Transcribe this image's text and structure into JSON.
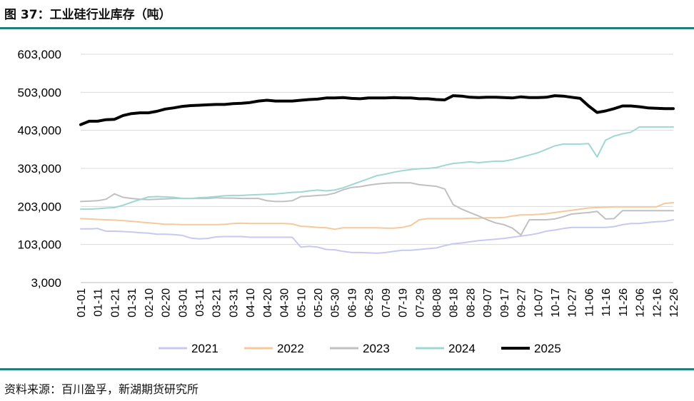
{
  "page": {
    "title": "图 37：工业硅行业库存（吨）",
    "source": "资料来源：百川盈孚，新湖期货研究所"
  },
  "chart_data": {
    "type": "line",
    "title": "图 37：工业硅行业库存（吨）",
    "ylabel": "",
    "xlabel": "",
    "ylim": [
      3000,
      603000
    ],
    "yticks": [
      3000,
      103000,
      203000,
      303000,
      403000,
      503000,
      603000
    ],
    "ytick_labels": [
      "3,000",
      "103,000",
      "203,000",
      "303,000",
      "403,000",
      "503,000",
      "603,000"
    ],
    "grid": true,
    "legend_position": "bottom",
    "x": [
      "01-01",
      "01-06",
      "01-11",
      "01-16",
      "01-21",
      "01-26",
      "01-31",
      "02-05",
      "02-10",
      "02-15",
      "02-20",
      "02-25",
      "03-01",
      "03-06",
      "03-11",
      "03-16",
      "03-21",
      "03-26",
      "03-31",
      "04-05",
      "04-10",
      "04-15",
      "04-20",
      "04-25",
      "04-30",
      "05-05",
      "05-10",
      "05-15",
      "05-20",
      "05-25",
      "05-30",
      "06-09",
      "06-19",
      "06-24",
      "06-29",
      "07-04",
      "07-09",
      "07-14",
      "07-19",
      "07-24",
      "07-29",
      "08-03",
      "08-08",
      "08-13",
      "08-18",
      "08-23",
      "08-28",
      "09-02",
      "09-07",
      "09-12",
      "09-17",
      "09-22",
      "09-27",
      "10-02",
      "10-07",
      "10-12",
      "10-17",
      "10-22",
      "10-27",
      "11-01",
      "11-06",
      "11-11",
      "11-16",
      "11-21",
      "11-26",
      "12-01",
      "12-06",
      "12-11",
      "12-16",
      "12-21",
      "12-26"
    ],
    "xtick_labels": [
      "01-01",
      "01-11",
      "01-21",
      "01-31",
      "02-10",
      "02-20",
      "03-01",
      "03-11",
      "03-21",
      "03-31",
      "04-10",
      "04-20",
      "04-30",
      "05-10",
      "05-20",
      "05-30",
      "06-19",
      "06-29",
      "07-09",
      "07-19",
      "07-29",
      "08-08",
      "08-18",
      "08-28",
      "09-07",
      "09-17",
      "09-27",
      "10-07",
      "10-17",
      "10-27",
      "11-06",
      "11-16",
      "11-26",
      "12-06",
      "12-16",
      "12-26"
    ],
    "series": [
      {
        "name": "2021",
        "color": "#c8c8f0",
        "width": 2,
        "values": [
          144000,
          144000,
          145000,
          138000,
          138000,
          137000,
          136000,
          134000,
          133000,
          130000,
          130000,
          129000,
          127000,
          120000,
          118000,
          119000,
          123000,
          124000,
          124000,
          124000,
          122000,
          122000,
          122000,
          122000,
          122000,
          122000,
          96000,
          98000,
          96000,
          90000,
          89000,
          85000,
          82000,
          82000,
          81000,
          80000,
          82000,
          85000,
          88000,
          88000,
          90000,
          92000,
          94000,
          100000,
          105000,
          107000,
          110000,
          113000,
          115000,
          117000,
          119000,
          122000,
          125000,
          128000,
          132000,
          138000,
          141000,
          145000,
          148000,
          148000,
          148000,
          148000,
          148000,
          150000,
          155000,
          158000,
          158000,
          161000,
          163000,
          164000,
          168000
        ]
      },
      {
        "name": "2022",
        "color": "#f5c999",
        "width": 2,
        "values": [
          171000,
          170000,
          169000,
          168000,
          167000,
          166000,
          164000,
          162000,
          160000,
          158000,
          156000,
          156000,
          155000,
          155000,
          155000,
          155000,
          155000,
          156000,
          158000,
          159000,
          158000,
          158000,
          158000,
          158000,
          158000,
          157000,
          151000,
          150000,
          148000,
          147000,
          143000,
          147000,
          147000,
          147000,
          147000,
          147000,
          146000,
          146000,
          148000,
          153000,
          168000,
          171000,
          171000,
          171000,
          171000,
          171000,
          172000,
          172000,
          173000,
          173000,
          174000,
          178000,
          181000,
          181000,
          182000,
          184000,
          187000,
          190000,
          193000,
          196000,
          199000,
          200000,
          201000,
          202000,
          202000,
          202000,
          202000,
          202000,
          202000,
          211000,
          213000
        ]
      },
      {
        "name": "2023",
        "color": "#c0c0c0",
        "width": 2,
        "values": [
          216000,
          217000,
          218000,
          222000,
          236000,
          227000,
          224000,
          222000,
          221000,
          222000,
          223000,
          224000,
          224000,
          224000,
          224000,
          224000,
          226000,
          225000,
          225000,
          224000,
          224000,
          224000,
          218000,
          216000,
          216000,
          218000,
          229000,
          230000,
          232000,
          233000,
          238000,
          247000,
          253000,
          255000,
          259000,
          262000,
          264000,
          265000,
          265000,
          265000,
          260000,
          258000,
          256000,
          249000,
          208000,
          196000,
          187000,
          178000,
          168000,
          160000,
          155000,
          146000,
          128000,
          168000,
          168000,
          168000,
          170000,
          176000,
          183000,
          185000,
          187000,
          190000,
          170000,
          171000,
          192000,
          192000,
          192000,
          192000,
          192000,
          192000,
          192000
        ]
      },
      {
        "name": "2024",
        "color": "#9fd7d4",
        "width": 2,
        "values": [
          196000,
          196000,
          197000,
          199000,
          200000,
          206000,
          214000,
          221000,
          228000,
          229000,
          228000,
          227000,
          224000,
          224000,
          226000,
          227000,
          229000,
          231000,
          232000,
          232000,
          233000,
          234000,
          235000,
          236000,
          238000,
          240000,
          241000,
          244000,
          246000,
          244000,
          246000,
          252000,
          260000,
          268000,
          276000,
          284000,
          288000,
          293000,
          297000,
          300000,
          302000,
          303000,
          305000,
          311000,
          316000,
          318000,
          320000,
          318000,
          320000,
          322000,
          322000,
          326000,
          332000,
          338000,
          344000,
          353000,
          362000,
          367000,
          367000,
          367000,
          368000,
          333000,
          377000,
          388000,
          394000,
          398000,
          412000,
          412000,
          412000,
          412000,
          412000
        ]
      },
      {
        "name": "2025",
        "color": "#000000",
        "width": 4,
        "values": [
          418000,
          427000,
          427000,
          431000,
          432000,
          442000,
          447000,
          449000,
          449000,
          453000,
          459000,
          462000,
          466000,
          468000,
          469000,
          470000,
          471000,
          471000,
          473000,
          474000,
          476000,
          480000,
          482000,
          480000,
          480000,
          480000,
          482000,
          484000,
          485000,
          488000,
          488000,
          489000,
          487000,
          486000,
          488000,
          488000,
          488000,
          489000,
          488000,
          488000,
          486000,
          486000,
          484000,
          483000,
          494000,
          493000,
          490000,
          489000,
          490000,
          490000,
          489000,
          488000,
          491000,
          489000,
          489000,
          490000,
          494000,
          493000,
          490000,
          487000,
          467000,
          450000,
          454000,
          460000,
          467000,
          467000,
          465000,
          462000,
          461000,
          460000,
          460000
        ]
      }
    ]
  }
}
